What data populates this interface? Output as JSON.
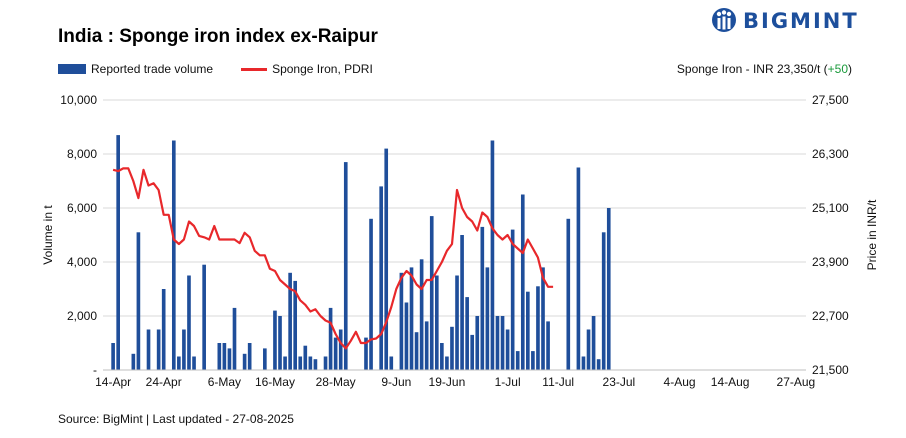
{
  "header": {
    "title": "India : Sponge iron index ex-Raipur",
    "brand": "BIGMINT"
  },
  "legend": {
    "bars_label": "Reported trade volume",
    "line_label": "Sponge Iron, PDRI"
  },
  "price_note": {
    "text": "Sponge Iron - INR 23,350/t (",
    "change": "+50",
    "close": ")"
  },
  "footer": {
    "source": "Source: BigMint | Last updated - 27-08-2025"
  },
  "colors": {
    "bars": "#1f4e9a",
    "line": "#e8282b",
    "grid": "#d9d9d9",
    "brand": "#1d4f9c",
    "positive": "#1a9a3b"
  },
  "chart_data": {
    "type": "bar",
    "ylabel": "Volume in t",
    "y2label": "Price in INR/t",
    "ylim": [
      0,
      10000
    ],
    "y2lim": [
      21500,
      27500
    ],
    "yticks": [
      "-",
      "2,000",
      "4,000",
      "6,000",
      "8,000",
      "10,000"
    ],
    "y2ticks": [
      "21,500",
      "22,700",
      "23,900",
      "25,100",
      "26,300",
      "27,500"
    ],
    "xticks": [
      {
        "label": "14-Apr",
        "day": 0
      },
      {
        "label": "24-Apr",
        "day": 10
      },
      {
        "label": "6-May",
        "day": 22
      },
      {
        "label": "16-May",
        "day": 32
      },
      {
        "label": "28-May",
        "day": 44
      },
      {
        "label": "9-Jun",
        "day": 56
      },
      {
        "label": "19-Jun",
        "day": 66
      },
      {
        "label": "1-Jul",
        "day": 78
      },
      {
        "label": "11-Jul",
        "day": 88
      },
      {
        "label": "23-Jul",
        "day": 100
      },
      {
        "label": "4-Aug",
        "day": 112
      },
      {
        "label": "14-Aug",
        "day": 122
      },
      {
        "label": "27-Aug",
        "day": 135
      }
    ],
    "grid": "horizontal",
    "legend_position": "top-left",
    "series": [
      {
        "name": "Reported trade volume",
        "type": "bar",
        "axis": "left",
        "points": [
          [
            0,
            1000
          ],
          [
            1,
            8700
          ],
          [
            4,
            600
          ],
          [
            5,
            5100
          ],
          [
            7,
            1500
          ],
          [
            9,
            1500
          ],
          [
            10,
            3000
          ],
          [
            12,
            8500
          ],
          [
            13,
            500
          ],
          [
            14,
            1500
          ],
          [
            15,
            3500
          ],
          [
            16,
            500
          ],
          [
            18,
            3900
          ],
          [
            21,
            1000
          ],
          [
            22,
            1000
          ],
          [
            23,
            800
          ],
          [
            24,
            2300
          ],
          [
            26,
            600
          ],
          [
            27,
            1000
          ],
          [
            30,
            800
          ],
          [
            32,
            2200
          ],
          [
            33,
            2000
          ],
          [
            34,
            500
          ],
          [
            35,
            3600
          ],
          [
            36,
            3300
          ],
          [
            37,
            500
          ],
          [
            38,
            900
          ],
          [
            39,
            500
          ],
          [
            40,
            400
          ],
          [
            42,
            500
          ],
          [
            43,
            2300
          ],
          [
            44,
            1200
          ],
          [
            45,
            1500
          ],
          [
            46,
            7700
          ],
          [
            50,
            1200
          ],
          [
            51,
            5600
          ],
          [
            53,
            6800
          ],
          [
            54,
            8200
          ],
          [
            55,
            500
          ],
          [
            57,
            3600
          ],
          [
            58,
            2500
          ],
          [
            59,
            3800
          ],
          [
            60,
            1400
          ],
          [
            61,
            4100
          ],
          [
            62,
            1800
          ],
          [
            63,
            5700
          ],
          [
            64,
            3500
          ],
          [
            65,
            1000
          ],
          [
            66,
            500
          ],
          [
            67,
            1600
          ],
          [
            68,
            3500
          ],
          [
            69,
            5000
          ],
          [
            70,
            2700
          ],
          [
            71,
            1300
          ],
          [
            72,
            2000
          ],
          [
            73,
            5300
          ],
          [
            74,
            3800
          ],
          [
            75,
            8500
          ],
          [
            76,
            2000
          ],
          [
            77,
            2000
          ],
          [
            78,
            1500
          ],
          [
            79,
            5200
          ],
          [
            80,
            700
          ],
          [
            81,
            6500
          ],
          [
            82,
            2900
          ],
          [
            83,
            700
          ],
          [
            84,
            3100
          ],
          [
            85,
            3800
          ],
          [
            86,
            1800
          ],
          [
            90,
            5600
          ],
          [
            92,
            7500
          ],
          [
            93,
            500
          ],
          [
            94,
            1500
          ],
          [
            95,
            2000
          ],
          [
            96,
            400
          ],
          [
            97,
            5100
          ],
          [
            98,
            6000
          ]
        ]
      },
      {
        "name": "Sponge Iron, PDRI",
        "type": "line",
        "axis": "right",
        "points": [
          [
            0,
            25950
          ],
          [
            1,
            25920
          ],
          [
            2,
            25980
          ],
          [
            3,
            25980
          ],
          [
            4,
            25700
          ],
          [
            5,
            25320
          ],
          [
            6,
            25950
          ],
          [
            7,
            25600
          ],
          [
            8,
            25650
          ],
          [
            9,
            25500
          ],
          [
            10,
            24950
          ],
          [
            11,
            24950
          ],
          [
            12,
            24400
          ],
          [
            13,
            24300
          ],
          [
            14,
            24400
          ],
          [
            15,
            24800
          ],
          [
            16,
            24700
          ],
          [
            17,
            24480
          ],
          [
            18,
            24450
          ],
          [
            19,
            24400
          ],
          [
            20,
            24700
          ],
          [
            21,
            24400
          ],
          [
            22,
            24400
          ],
          [
            23,
            24400
          ],
          [
            24,
            24400
          ],
          [
            25,
            24320
          ],
          [
            26,
            24550
          ],
          [
            27,
            24450
          ],
          [
            28,
            24150
          ],
          [
            29,
            24050
          ],
          [
            30,
            24050
          ],
          [
            31,
            23750
          ],
          [
            32,
            23700
          ],
          [
            33,
            23500
          ],
          [
            34,
            23400
          ],
          [
            35,
            23300
          ],
          [
            36,
            23250
          ],
          [
            37,
            23050
          ],
          [
            38,
            22950
          ],
          [
            39,
            22800
          ],
          [
            40,
            22850
          ],
          [
            41,
            22700
          ],
          [
            42,
            22600
          ],
          [
            43,
            22550
          ],
          [
            44,
            22300
          ],
          [
            45,
            22100
          ],
          [
            46,
            21980
          ],
          [
            47,
            22150
          ],
          [
            48,
            22350
          ],
          [
            49,
            22100
          ],
          [
            50,
            22100
          ],
          [
            51,
            22180
          ],
          [
            52,
            22200
          ],
          [
            53,
            22300
          ],
          [
            54,
            22560
          ],
          [
            55,
            22900
          ],
          [
            56,
            23300
          ],
          [
            57,
            23550
          ],
          [
            58,
            23700
          ],
          [
            59,
            23600
          ],
          [
            60,
            23400
          ],
          [
            61,
            23300
          ],
          [
            62,
            23500
          ],
          [
            63,
            23500
          ],
          [
            64,
            23700
          ],
          [
            65,
            23900
          ],
          [
            66,
            24150
          ],
          [
            67,
            24300
          ],
          [
            68,
            25500
          ],
          [
            69,
            25100
          ],
          [
            70,
            24900
          ],
          [
            71,
            24800
          ],
          [
            72,
            24600
          ],
          [
            73,
            25000
          ],
          [
            74,
            24900
          ],
          [
            75,
            24650
          ],
          [
            76,
            24500
          ],
          [
            77,
            24400
          ],
          [
            78,
            24500
          ],
          [
            79,
            24300
          ],
          [
            80,
            24200
          ],
          [
            81,
            24100
          ],
          [
            82,
            24400
          ],
          [
            83,
            24200
          ],
          [
            84,
            24000
          ],
          [
            85,
            23550
          ],
          [
            86,
            23350
          ],
          [
            87,
            23350
          ]
        ]
      }
    ]
  }
}
